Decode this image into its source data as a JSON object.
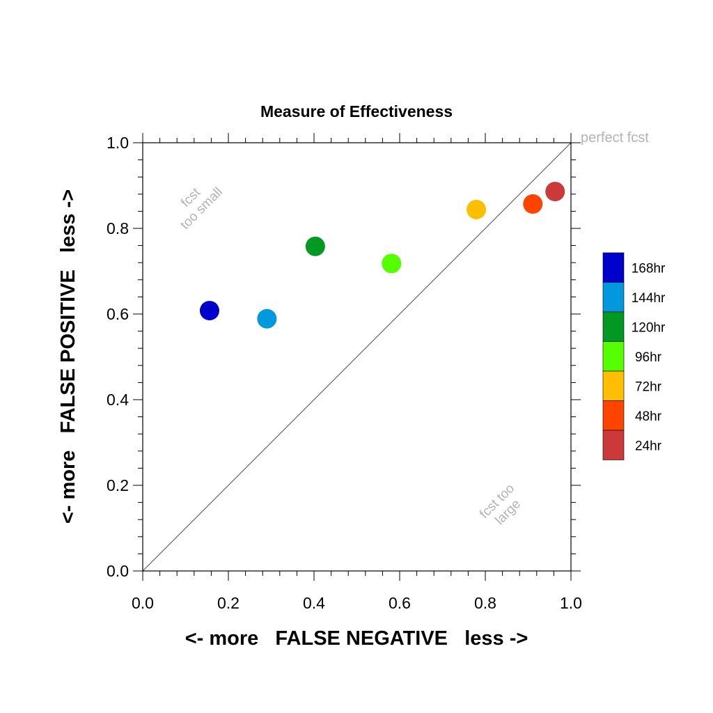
{
  "chart_data": {
    "type": "scatter",
    "title": "Measure of Effectiveness",
    "xlabel": "<- more   FALSE NEGATIVE   less ->",
    "ylabel": "<- more   FALSE POSITIVE   less ->",
    "xlim": [
      0.0,
      1.0
    ],
    "ylim": [
      0.0,
      1.0
    ],
    "xticks": [
      "0.0",
      "0.2",
      "0.4",
      "0.6",
      "0.8",
      "1.0"
    ],
    "yticks": [
      "0.0",
      "0.2",
      "0.4",
      "0.6",
      "0.8",
      "1.0"
    ],
    "grid": false,
    "legend_position": "right",
    "reference_line": "diagonal y = x",
    "series": [
      {
        "name": "168hr",
        "color": "#0000cc",
        "x": 0.156,
        "y": 0.608
      },
      {
        "name": "144hr",
        "color": "#0099dd",
        "x": 0.29,
        "y": 0.589
      },
      {
        "name": "120hr",
        "color": "#009922",
        "x": 0.403,
        "y": 0.758
      },
      {
        "name": "96hr",
        "color": "#55ff00",
        "x": 0.581,
        "y": 0.718
      },
      {
        "name": "72hr",
        "color": "#ffbf00",
        "x": 0.779,
        "y": 0.844
      },
      {
        "name": "48hr",
        "color": "#ff4400",
        "x": 0.911,
        "y": 0.857
      },
      {
        "name": "24hr",
        "color": "#cc3939",
        "x": 0.963,
        "y": 0.886
      }
    ],
    "annotations": {
      "top_left": [
        "fcst",
        "too small"
      ],
      "bottom_right": [
        "fcst too",
        "large"
      ],
      "corner": "perfect fcst"
    }
  }
}
